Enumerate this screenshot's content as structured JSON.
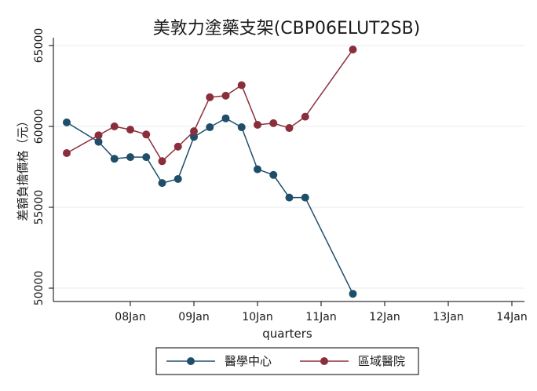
{
  "chart_data": {
    "type": "line",
    "title": "美敦力塗藥支架(CBP06ELUT2SB)",
    "xlabel": "quarters",
    "ylabel": "差額負擔價格（元）",
    "x_ticks": [
      "08Jan",
      "09Jan",
      "10Jan",
      "11Jan",
      "12Jan",
      "13Jan",
      "14Jan"
    ],
    "y_ticks": [
      50000,
      55000,
      60000,
      65000
    ],
    "ylim": [
      49500,
      65700
    ],
    "grid": "horizontal",
    "legend_position": "bottom",
    "series": [
      {
        "name": "醫學中心",
        "color": "#1f4e6b",
        "points": [
          {
            "x": "07Jan",
            "y": 60250
          },
          {
            "x": "07Jul",
            "y": 59050
          },
          {
            "x": "07Oct",
            "y": 58000
          },
          {
            "x": "08Jan",
            "y": 58100
          },
          {
            "x": "08Apr",
            "y": 58100
          },
          {
            "x": "08Jul",
            "y": 56500
          },
          {
            "x": "08Oct",
            "y": 56750
          },
          {
            "x": "09Jan",
            "y": 59350
          },
          {
            "x": "09Apr",
            "y": 59950
          },
          {
            "x": "09Jul",
            "y": 60500
          },
          {
            "x": "09Oct",
            "y": 59950
          },
          {
            "x": "10Jan",
            "y": 57350
          },
          {
            "x": "10Apr",
            "y": 57000
          },
          {
            "x": "10Jul",
            "y": 55600
          },
          {
            "x": "10Oct",
            "y": 55600
          },
          {
            "x": "11Jul",
            "y": 49650
          }
        ]
      },
      {
        "name": "區域醫院",
        "color": "#8b2e3c",
        "points": [
          {
            "x": "07Jan",
            "y": 58350
          },
          {
            "x": "07Jul",
            "y": 59450
          },
          {
            "x": "07Oct",
            "y": 60000
          },
          {
            "x": "08Jan",
            "y": 59800
          },
          {
            "x": "08Apr",
            "y": 59500
          },
          {
            "x": "08Jul",
            "y": 57850
          },
          {
            "x": "08Oct",
            "y": 58750
          },
          {
            "x": "09Jan",
            "y": 59700
          },
          {
            "x": "09Apr",
            "y": 61800
          },
          {
            "x": "09Jul",
            "y": 61900
          },
          {
            "x": "09Oct",
            "y": 62550
          },
          {
            "x": "10Jan",
            "y": 60100
          },
          {
            "x": "10Apr",
            "y": 60200
          },
          {
            "x": "10Jul",
            "y": 59900
          },
          {
            "x": "10Oct",
            "y": 60600
          },
          {
            "x": "11Jul",
            "y": 64750
          }
        ]
      }
    ]
  }
}
